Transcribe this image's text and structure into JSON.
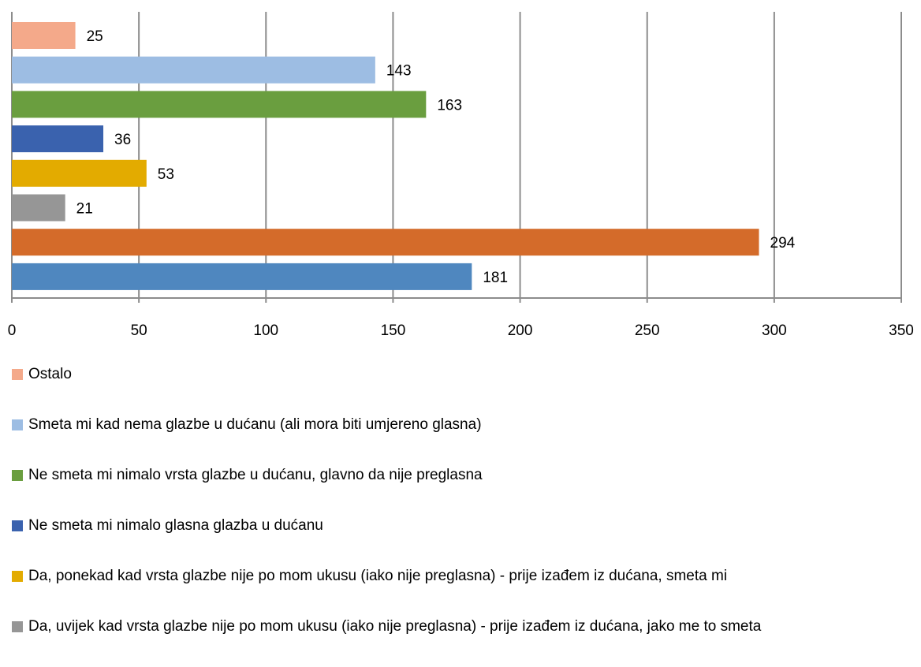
{
  "chart_data": {
    "type": "hbar",
    "series": [
      {
        "name": "Ostalo",
        "color": "#f4a98a",
        "values": [
          25
        ]
      },
      {
        "name": "Smeta mi kad nema glazbe u dućanu (ali mora biti umjereno glasna)",
        "color": "#9dbde3",
        "values": [
          143
        ]
      },
      {
        "name": "Ne smeta mi nimalo vrsta glazbe u dućanu, glavno da nije preglasna",
        "color": "#6a9e3f",
        "values": [
          163
        ]
      },
      {
        "name": "Ne smeta mi nimalo glasna glazba u dućanu",
        "color": "#3a62ae",
        "values": [
          36
        ]
      },
      {
        "name": "Da, ponekad kad vrsta glazbe nije po mom ukusu (iako nije preglasna) -  prije izađem iz dućana, smeta mi",
        "color": "#e3ab00",
        "values": [
          53
        ]
      },
      {
        "name": "Da, uvijek kad vrsta glazbe nije po mom ukusu (iako nije preglasna) -  prije izađem iz dućana, jako me to smeta",
        "color": "#969696",
        "values": [
          21
        ]
      },
      {
        "color": "#d46b2a",
        "values": [
          294
        ]
      },
      {
        "color": "#4f87bf",
        "values": [
          181
        ]
      }
    ],
    "xlim": [
      0,
      350
    ],
    "xticks": [
      0,
      50,
      100,
      150,
      200,
      250,
      300,
      350
    ],
    "grid": true,
    "legend": "bottom"
  }
}
